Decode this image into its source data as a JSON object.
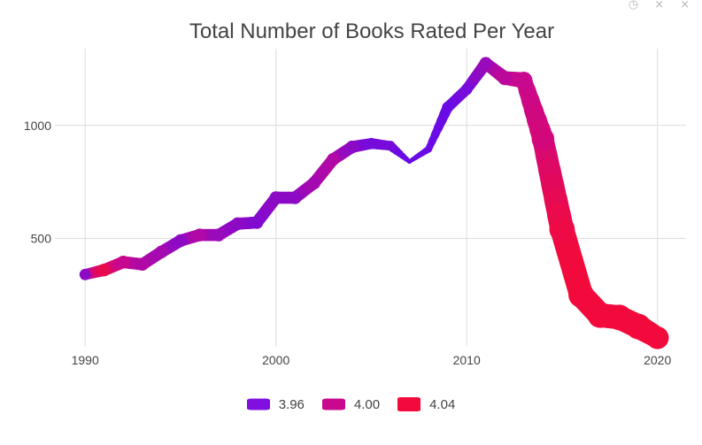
{
  "modebar": {
    "zoom_icon": "autoscale-icon",
    "close1": "×",
    "close2": "×"
  },
  "chart_data": {
    "type": "line",
    "title": "Total Number of Books Rated Per Year",
    "xlabel": "",
    "ylabel": "",
    "xlim": [
      1986,
      2021.5
    ],
    "ylim": [
      20,
      1340
    ],
    "x_ticks": [
      1990,
      2000,
      2010,
      2020
    ],
    "y_ticks": [
      500,
      1000
    ],
    "grid": true,
    "legend_position": "bottom",
    "color_scale": {
      "low": 3.96,
      "mid": 4.0,
      "high": 4.04,
      "low_color": "#6a0be6",
      "mid_color": "#c8088f",
      "high_color": "#f20a3c"
    },
    "legend": [
      {
        "label": "3.96",
        "color": "#7f10e0"
      },
      {
        "label": "4.00",
        "color": "#c8088f"
      },
      {
        "label": "4.04",
        "color": "#f20a3c"
      }
    ],
    "series": [
      {
        "name": "",
        "points": [
          {
            "x": 1990,
            "y": 340,
            "rating": 3.975,
            "width": 8
          },
          {
            "x": 1991,
            "y": 360,
            "rating": 4.03,
            "width": 9
          },
          {
            "x": 1992,
            "y": 395,
            "rating": 4.0,
            "width": 9
          },
          {
            "x": 1993,
            "y": 385,
            "rating": 3.99,
            "width": 9
          },
          {
            "x": 1994,
            "y": 440,
            "rating": 3.985,
            "width": 9
          },
          {
            "x": 1995,
            "y": 490,
            "rating": 3.975,
            "width": 9
          },
          {
            "x": 1996,
            "y": 515,
            "rating": 3.99,
            "width": 9
          },
          {
            "x": 1997,
            "y": 515,
            "rating": 3.98,
            "width": 9
          },
          {
            "x": 1998,
            "y": 565,
            "rating": 3.975,
            "width": 9
          },
          {
            "x": 1999,
            "y": 570,
            "rating": 3.97,
            "width": 9
          },
          {
            "x": 2000,
            "y": 680,
            "rating": 3.975,
            "width": 9
          },
          {
            "x": 2001,
            "y": 680,
            "rating": 3.975,
            "width": 9
          },
          {
            "x": 2002,
            "y": 745,
            "rating": 3.985,
            "width": 9
          },
          {
            "x": 2003,
            "y": 850,
            "rating": 3.99,
            "width": 9
          },
          {
            "x": 2004,
            "y": 905,
            "rating": 3.975,
            "width": 9
          },
          {
            "x": 2005,
            "y": 920,
            "rating": 3.965,
            "width": 8
          },
          {
            "x": 2006,
            "y": 910,
            "rating": 3.965,
            "width": 7
          },
          {
            "x": 2007,
            "y": 840,
            "rating": 3.955,
            "width": 3
          },
          {
            "x": 2008,
            "y": 895,
            "rating": 3.955,
            "width": 5
          },
          {
            "x": 2009,
            "y": 1080,
            "rating": 3.96,
            "width": 8
          },
          {
            "x": 2010,
            "y": 1160,
            "rating": 3.965,
            "width": 8
          },
          {
            "x": 2011,
            "y": 1275,
            "rating": 3.98,
            "width": 9
          },
          {
            "x": 2012,
            "y": 1210,
            "rating": 3.995,
            "width": 10
          },
          {
            "x": 2013,
            "y": 1200,
            "rating": 4.0,
            "width": 12
          },
          {
            "x": 2014,
            "y": 940,
            "rating": 4.01,
            "width": 16
          },
          {
            "x": 2015,
            "y": 540,
            "rating": 4.035,
            "width": 18
          },
          {
            "x": 2016,
            "y": 250,
            "rating": 4.045,
            "width": 18
          },
          {
            "x": 2017,
            "y": 160,
            "rating": 4.055,
            "width": 18
          },
          {
            "x": 2018,
            "y": 150,
            "rating": 4.05,
            "width": 18
          },
          {
            "x": 2019,
            "y": 110,
            "rating": 4.045,
            "width": 18
          },
          {
            "x": 2020,
            "y": 60,
            "rating": 4.045,
            "width": 16
          }
        ]
      }
    ]
  }
}
